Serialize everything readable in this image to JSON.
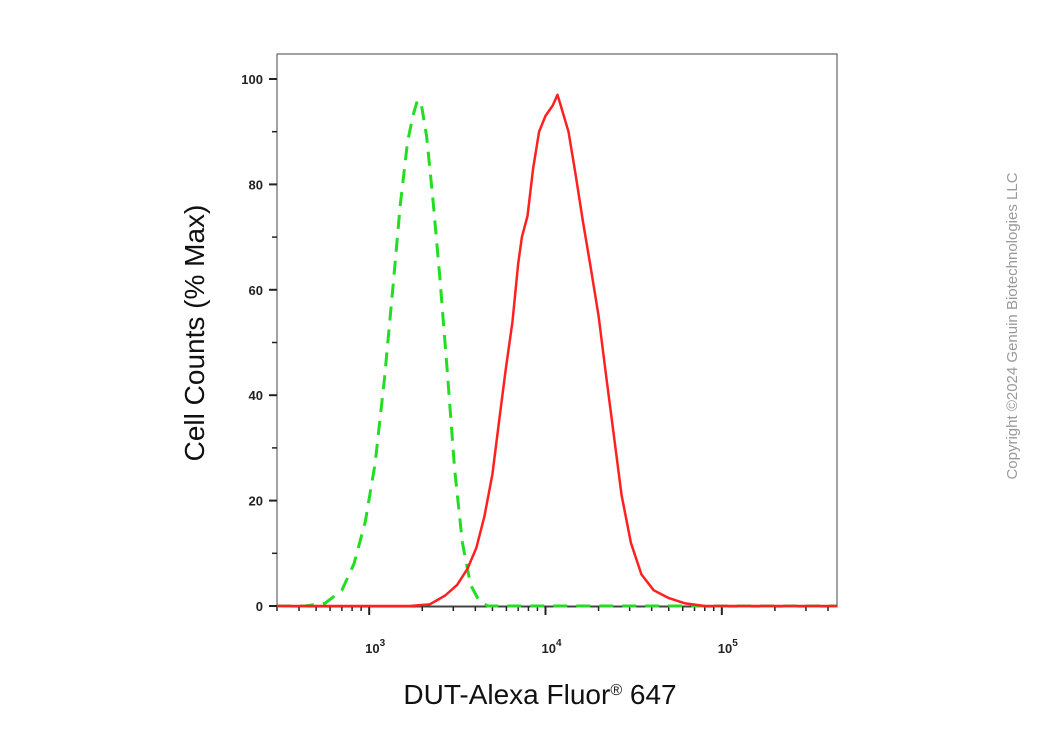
{
  "chart_data": {
    "type": "line",
    "xlabel": "DUT-Alexa Fluor",
    "xlabel_mark": "®",
    "xlabel_suffix": " 647",
    "ylabel": "Cell Counts (% Max)",
    "x_scale": "log",
    "xlim": [
      300,
      450000
    ],
    "ylim": [
      0,
      100
    ],
    "y_ticks": [
      "0",
      "20",
      "40",
      "60",
      "80",
      "100"
    ],
    "x_ticks": [
      {
        "base": "10",
        "exp": "3",
        "value": 1000
      },
      {
        "base": "10",
        "exp": "4",
        "value": 10000
      },
      {
        "base": "10",
        "exp": "5",
        "value": 100000
      }
    ],
    "grid": false,
    "legend": "none",
    "series": [
      {
        "color": "#22dd22",
        "style": "dashed",
        "points": [
          [
            300,
            0
          ],
          [
            430,
            0
          ],
          [
            560,
            0.5
          ],
          [
            700,
            3
          ],
          [
            820,
            8
          ],
          [
            950,
            16
          ],
          [
            1080,
            27
          ],
          [
            1220,
            43
          ],
          [
            1360,
            60
          ],
          [
            1500,
            76
          ],
          [
            1650,
            88
          ],
          [
            1770,
            93
          ],
          [
            1880,
            96
          ],
          [
            1980,
            95
          ],
          [
            2120,
            89
          ],
          [
            2300,
            77
          ],
          [
            2520,
            62
          ],
          [
            2780,
            44
          ],
          [
            3050,
            26
          ],
          [
            3380,
            12
          ],
          [
            3760,
            4
          ],
          [
            4200,
            1
          ],
          [
            4700,
            0
          ],
          [
            450000,
            0
          ]
        ]
      },
      {
        "color": "#ff2020",
        "style": "solid",
        "points": [
          [
            300,
            0
          ],
          [
            1700,
            0
          ],
          [
            2200,
            0.3
          ],
          [
            2700,
            2
          ],
          [
            3150,
            4
          ],
          [
            3600,
            7
          ],
          [
            4050,
            11
          ],
          [
            4500,
            17
          ],
          [
            5000,
            25
          ],
          [
            5500,
            36
          ],
          [
            5950,
            45
          ],
          [
            6500,
            54
          ],
          [
            7000,
            65
          ],
          [
            7350,
            70
          ],
          [
            7900,
            74
          ],
          [
            8500,
            83
          ],
          [
            9200,
            90
          ],
          [
            10000,
            93
          ],
          [
            11000,
            95
          ],
          [
            11700,
            97
          ],
          [
            12200,
            95
          ],
          [
            13500,
            90
          ],
          [
            14800,
            82
          ],
          [
            16300,
            73
          ],
          [
            18100,
            64
          ],
          [
            20000,
            55
          ],
          [
            22000,
            44
          ],
          [
            24500,
            32
          ],
          [
            27000,
            21
          ],
          [
            30500,
            12
          ],
          [
            35000,
            6
          ],
          [
            41000,
            3
          ],
          [
            50000,
            1.5
          ],
          [
            62000,
            0.5
          ],
          [
            80000,
            0
          ],
          [
            450000,
            0
          ]
        ]
      }
    ]
  },
  "copyright": "Copyright ©2024 Genuin Biotechnologies LLC"
}
